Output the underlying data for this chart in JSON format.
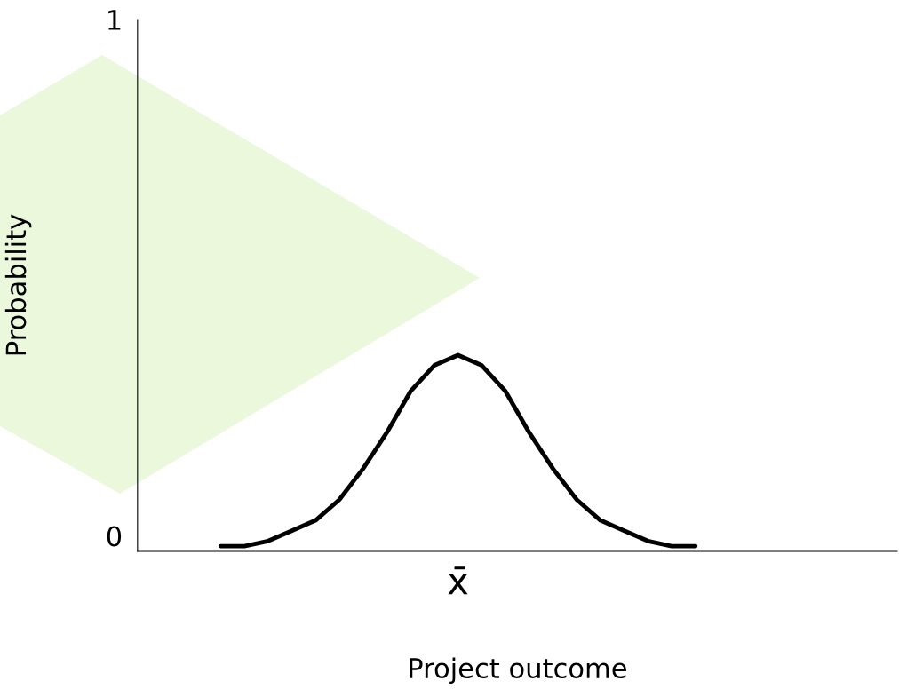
{
  "chart_data": {
    "type": "line",
    "xlabel": "Project outcome",
    "ylabel": "Probability",
    "categories": [
      null,
      null,
      null,
      null,
      null,
      null,
      null,
      null,
      null,
      null,
      null,
      null,
      null,
      "x̄",
      null,
      null,
      null,
      null,
      null,
      null,
      null,
      null,
      null,
      null,
      null,
      null,
      null,
      null,
      null,
      null,
      null,
      null
    ],
    "series": [
      {
        "color": "#000000",
        "values": [
          null,
          null,
          null,
          -0.02,
          -0.02,
          -0.01,
          0.01,
          0.03,
          0.07,
          0.13,
          0.2,
          0.28,
          0.33,
          0.35,
          0.33,
          0.28,
          0.2,
          0.13,
          0.07,
          0.03,
          0.01,
          -0.01,
          -0.02,
          -0.02,
          null,
          null,
          null,
          null,
          null,
          null,
          null,
          null
        ]
      }
    ],
    "ylim": [
      -0.03,
      1
    ],
    "yticks": [
      0,
      1
    ],
    "grid": false,
    "legend": false,
    "marker": "none",
    "line_style": "solid"
  }
}
